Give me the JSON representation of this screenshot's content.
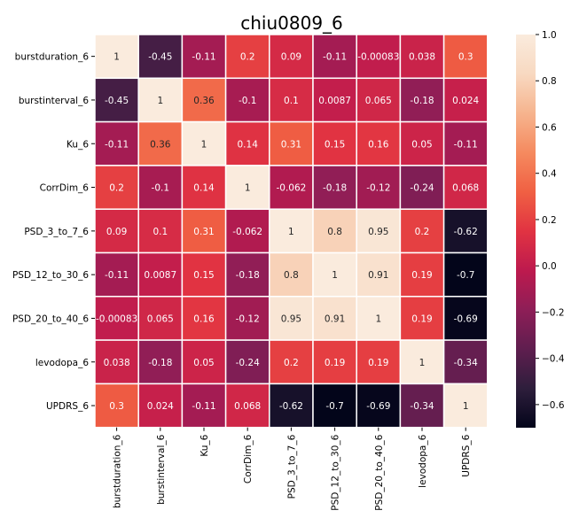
{
  "chart_data": {
    "type": "heatmap",
    "title": "chiu0809_6",
    "rows": [
      "burstduration_6",
      "burstinterval_6",
      "Ku_6",
      "CorrDim_6",
      "PSD_3_to_7_6",
      "PSD_12_to_30_6",
      "PSD_20_to_40_6",
      "levodopa_6",
      "UPDRS_6"
    ],
    "columns": [
      "burstduration_6",
      "burstinterval_6",
      "Ku_6",
      "CorrDim_6",
      "PSD_3_to_7_6",
      "PSD_12_to_30_6",
      "PSD_20_to_40_6",
      "levodopa_6",
      "UPDRS_6"
    ],
    "values": [
      [
        1,
        -0.45,
        -0.11,
        0.2,
        0.09,
        -0.11,
        -0.00083,
        0.038,
        0.3
      ],
      [
        -0.45,
        1,
        0.36,
        -0.1,
        0.1,
        0.0087,
        0.065,
        -0.18,
        0.024
      ],
      [
        -0.11,
        0.36,
        1,
        0.14,
        0.31,
        0.15,
        0.16,
        0.05,
        -0.11
      ],
      [
        0.2,
        -0.1,
        0.14,
        1,
        -0.062,
        -0.18,
        -0.12,
        -0.24,
        0.068
      ],
      [
        0.09,
        0.1,
        0.31,
        -0.062,
        1,
        0.8,
        0.95,
        0.2,
        -0.62
      ],
      [
        -0.11,
        0.0087,
        0.15,
        -0.18,
        0.8,
        1,
        0.91,
        0.19,
        -0.7
      ],
      [
        -0.00083,
        0.065,
        0.16,
        -0.12,
        0.95,
        0.91,
        1,
        0.19,
        -0.69
      ],
      [
        0.038,
        -0.18,
        0.05,
        -0.24,
        0.2,
        0.19,
        0.19,
        1,
        -0.34
      ],
      [
        0.3,
        0.024,
        -0.11,
        0.068,
        -0.62,
        -0.7,
        -0.69,
        -0.34,
        1
      ]
    ],
    "labels": [
      [
        "1",
        "-0.45",
        "-0.11",
        "0.2",
        "0.09",
        "-0.11",
        "-0.00083",
        "0.038",
        "0.3"
      ],
      [
        "-0.45",
        "1",
        "0.36",
        "-0.1",
        "0.1",
        "0.0087",
        "0.065",
        "-0.18",
        "0.024"
      ],
      [
        "-0.11",
        "0.36",
        "1",
        "0.14",
        "0.31",
        "0.15",
        "0.16",
        "0.05",
        "-0.11"
      ],
      [
        "0.2",
        "-0.1",
        "0.14",
        "1",
        "-0.062",
        "-0.18",
        "-0.12",
        "-0.24",
        "0.068"
      ],
      [
        "0.09",
        "0.1",
        "0.31",
        "-0.062",
        "1",
        "0.8",
        "0.95",
        "0.2",
        "-0.62"
      ],
      [
        "-0.11",
        "0.0087",
        "0.15",
        "-0.18",
        "0.8",
        "1",
        "0.91",
        "0.19",
        "-0.7"
      ],
      [
        "-0.00083",
        "0.065",
        "0.16",
        "-0.12",
        "0.95",
        "0.91",
        "1",
        "0.19",
        "-0.69"
      ],
      [
        "0.038",
        "-0.18",
        "0.05",
        "-0.24",
        "0.2",
        "0.19",
        "0.19",
        "1",
        "-0.34"
      ],
      [
        "0.3",
        "0.024",
        "-0.11",
        "0.068",
        "-0.62",
        "-0.7",
        "-0.69",
        "-0.34",
        "1"
      ]
    ],
    "colorbar": {
      "range": [
        -0.7,
        1
      ],
      "ticks": [
        1.0,
        0.8,
        0.6,
        0.4,
        0.2,
        0.0,
        -0.2,
        -0.4,
        -0.6
      ],
      "tick_labels": [
        "1.0",
        "0.8",
        "0.6",
        "0.4",
        "0.2",
        "0.0",
        "−0.2",
        "−0.4",
        "−0.6"
      ],
      "colormap": "rocket",
      "stops": [
        "#03051a",
        "#2e1e3c",
        "#5f1e4f",
        "#8e1e57",
        "#bd1a4e",
        "#e13342",
        "#f06043",
        "#f58a5f",
        "#f6b48e",
        "#f8d9c1",
        "#faebdd"
      ]
    },
    "xlabel": "",
    "ylabel": "",
    "grid": false,
    "legend": "colorbar right"
  }
}
